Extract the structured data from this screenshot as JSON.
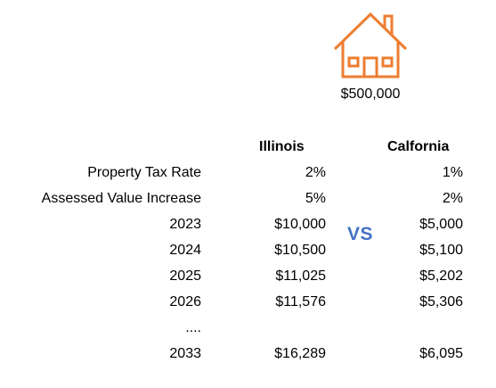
{
  "header": {
    "house_icon": "house-outline-icon",
    "house_color": "#ed7d31",
    "price": "$500,000"
  },
  "columns": {
    "illinois": "Illinois",
    "california": "Calfornia"
  },
  "vs_label": "VS",
  "vs_color": "#4472c4",
  "rows": [
    {
      "label": "Property Tax Rate",
      "illinois": "2%",
      "california": "1%"
    },
    {
      "label": "Assessed Value Increase",
      "illinois": "5%",
      "california": "2%"
    },
    {
      "label": "2023",
      "illinois": "$10,000",
      "california": "$5,000"
    },
    {
      "label": "2024",
      "illinois": "$10,500",
      "california": "$5,100"
    },
    {
      "label": "2025",
      "illinois": "$11,025",
      "california": "$5,202"
    },
    {
      "label": "2026",
      "illinois": "$11,576",
      "california": "$5,306"
    },
    {
      "label": "....",
      "illinois": "",
      "california": ""
    },
    {
      "label": "2033",
      "illinois": "$16,289",
      "california": "$6,095"
    }
  ]
}
